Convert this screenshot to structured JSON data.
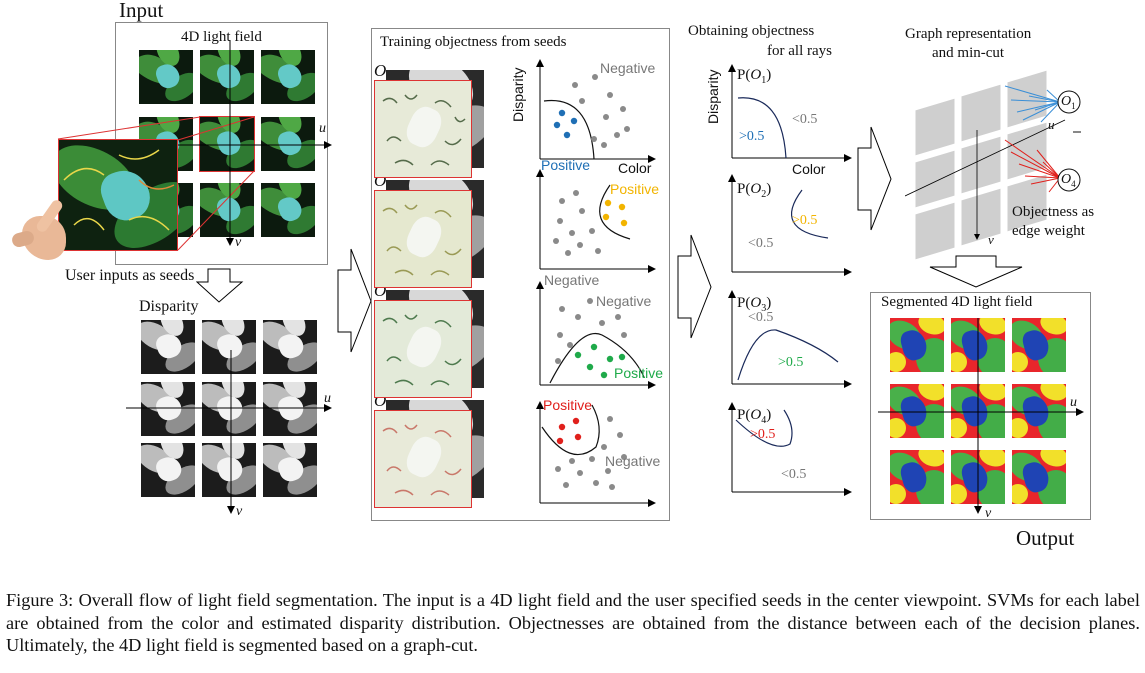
{
  "input_label": "Input",
  "output_label": "Output",
  "light_field_label": "4D light field",
  "user_seeds_label": "User inputs as seeds",
  "disparity_label": "Disparity",
  "axis_u": "u",
  "axis_v": "v",
  "training_title": "Training objectness from seeds",
  "training_rows": [
    {
      "obj": "O",
      "sub": "1",
      "pos": "Positive",
      "neg": "Negative",
      "ylabel": "Disparity",
      "xlabel": "Color",
      "pos_color": "#1f6fb5"
    },
    {
      "obj": "O",
      "sub": "2",
      "pos": "Positive",
      "neg": "Negative",
      "pos_color": "#f2b400"
    },
    {
      "obj": "O",
      "sub": "3",
      "pos": "Positive",
      "neg": "Negative",
      "pos_color": "#1faa4a"
    },
    {
      "obj": "O",
      "sub": "4",
      "pos": "Positive",
      "neg": "Negative",
      "pos_color": "#e0201c"
    }
  ],
  "objectness_title_1": "Obtaining objectness",
  "objectness_title_2": "for all rays",
  "objectness_rows": [
    {
      "p": "P(",
      "obj": "O",
      "sub": "1",
      "close": ")",
      "hi": ">0.5",
      "lo": "<0.5",
      "hi_color": "#1f6fb5",
      "ylabel": "Disparity",
      "xlabel": "Color"
    },
    {
      "p": "P(",
      "obj": "O",
      "sub": "2",
      "close": ")",
      "hi": ">0.5",
      "lo": "<0.5",
      "hi_color": "#f2b400"
    },
    {
      "p": "P(",
      "obj": "O",
      "sub": "3",
      "close": ")",
      "hi": ">0.5",
      "lo": "<0.5",
      "hi_color": "#1faa4a"
    },
    {
      "p": "P(",
      "obj": "O",
      "sub": "4",
      "close": ")",
      "hi": ">0.5",
      "lo": "<0.5",
      "hi_color": "#e0201c"
    }
  ],
  "graph_title_1": "Graph representation",
  "graph_title_2": "and min-cut",
  "graph_node_1": "O",
  "graph_node_1_sub": "1",
  "graph_node_4": "O",
  "graph_node_4_sub": "4",
  "edge_weight_1": "Objectness as",
  "edge_weight_2": "edge weight",
  "segmented_label": "Segmented 4D light field",
  "caption": "Figure 3: Overall flow of light field segmentation. The input is a 4D light field and the user specified seeds in the center viewpoint. SVMs for each label are obtained from the color and estimated disparity distribution. Objectnesses are obtained from the distance between each of the decision planes. Ultimately, the 4D light field is segmented based on a graph-cut."
}
